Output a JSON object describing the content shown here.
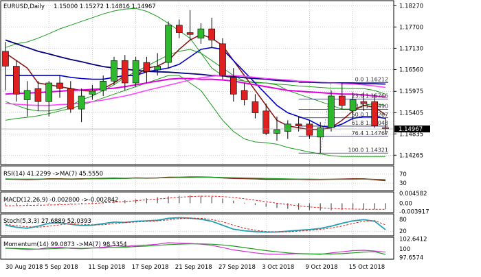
{
  "header": {
    "symbol": "EURUSD,Daily",
    "ohlc": "1.15000 1.15272 1.14816 1.14967"
  },
  "colors": {
    "bull": "#2db82d",
    "bear": "#e02020",
    "bb": "#1a9b1a",
    "ma_fast": "#8b1a1a",
    "ma_mid": "#0000cc",
    "ma_slow": "#1a1a80",
    "ma_mag": "#e000e0",
    "ma_dark": "#000080",
    "ma_pink": "#ff44ff",
    "fib": "#1a1a6e",
    "current_bg": "#000000"
  },
  "chart_data": [
    {
      "type": "candlestick",
      "title": "EURUSD,Daily",
      "ylim": [
        1.1405,
        1.1835
      ],
      "x_ticks": [
        "30 Aug 2018",
        "5 Sep 2018",
        "11 Sep 2018",
        "17 Sep 2018",
        "21 Sep 2018",
        "27 Sep 2018",
        "3 Oct 2018",
        "9 Oct 2018",
        "15 Oct 2018"
      ],
      "y_ticks": [
        "1.18270",
        "1.17700",
        "1.17130",
        "1.16560",
        "1.15975",
        "1.15405",
        "1.14835",
        "1.14265"
      ],
      "current_price": "1.14967",
      "candles": [
        {
          "o": 1.1705,
          "h": 1.173,
          "l": 1.16,
          "c": 1.1665
        },
        {
          "o": 1.1665,
          "h": 1.168,
          "l": 1.157,
          "c": 1.159
        },
        {
          "o": 1.1575,
          "h": 1.1625,
          "l": 1.153,
          "c": 1.16
        },
        {
          "o": 1.1605,
          "h": 1.1625,
          "l": 1.1545,
          "c": 1.157
        },
        {
          "o": 1.157,
          "h": 1.1625,
          "l": 1.153,
          "c": 1.162
        },
        {
          "o": 1.162,
          "h": 1.164,
          "l": 1.158,
          "c": 1.1605
        },
        {
          "o": 1.1605,
          "h": 1.1625,
          "l": 1.154,
          "c": 1.155
        },
        {
          "o": 1.155,
          "h": 1.1605,
          "l": 1.1515,
          "c": 1.1585
        },
        {
          "o": 1.159,
          "h": 1.1615,
          "l": 1.1575,
          "c": 1.1598
        },
        {
          "o": 1.16,
          "h": 1.164,
          "l": 1.1585,
          "c": 1.1625
        },
        {
          "o": 1.1625,
          "h": 1.169,
          "l": 1.1615,
          "c": 1.168
        },
        {
          "o": 1.168,
          "h": 1.1695,
          "l": 1.16,
          "c": 1.162
        },
        {
          "o": 1.162,
          "h": 1.169,
          "l": 1.161,
          "c": 1.168
        },
        {
          "o": 1.1675,
          "h": 1.169,
          "l": 1.162,
          "c": 1.165
        },
        {
          "o": 1.1655,
          "h": 1.17,
          "l": 1.164,
          "c": 1.1665
        },
        {
          "o": 1.1675,
          "h": 1.1785,
          "l": 1.166,
          "c": 1.1775
        },
        {
          "o": 1.1775,
          "h": 1.179,
          "l": 1.174,
          "c": 1.1755
        },
        {
          "o": 1.1755,
          "h": 1.1815,
          "l": 1.1735,
          "c": 1.175
        },
        {
          "o": 1.174,
          "h": 1.178,
          "l": 1.1725,
          "c": 1.1765
        },
        {
          "o": 1.1765,
          "h": 1.1795,
          "l": 1.1715,
          "c": 1.1735
        },
        {
          "o": 1.1725,
          "h": 1.174,
          "l": 1.163,
          "c": 1.164
        },
        {
          "o": 1.1635,
          "h": 1.166,
          "l": 1.157,
          "c": 1.159
        },
        {
          "o": 1.16,
          "h": 1.162,
          "l": 1.156,
          "c": 1.1575
        },
        {
          "o": 1.157,
          "h": 1.159,
          "l": 1.1525,
          "c": 1.154
        },
        {
          "o": 1.1545,
          "h": 1.1565,
          "l": 1.148,
          "c": 1.1485
        },
        {
          "o": 1.1485,
          "h": 1.153,
          "l": 1.1465,
          "c": 1.1495
        },
        {
          "o": 1.149,
          "h": 1.152,
          "l": 1.147,
          "c": 1.151
        },
        {
          "o": 1.151,
          "h": 1.153,
          "l": 1.149,
          "c": 1.1505
        },
        {
          "o": 1.151,
          "h": 1.152,
          "l": 1.147,
          "c": 1.148
        },
        {
          "o": 1.1475,
          "h": 1.1515,
          "l": 1.1432,
          "c": 1.15
        },
        {
          "o": 1.15,
          "h": 1.16,
          "l": 1.149,
          "c": 1.1585
        },
        {
          "o": 1.1585,
          "h": 1.162,
          "l": 1.155,
          "c": 1.156
        },
        {
          "o": 1.1545,
          "h": 1.1595,
          "l": 1.152,
          "c": 1.1575
        },
        {
          "o": 1.157,
          "h": 1.1595,
          "l": 1.1545,
          "c": 1.1565
        },
        {
          "o": 1.157,
          "h": 1.159,
          "l": 1.15,
          "c": 1.1505
        },
        {
          "o": 1.15,
          "h": 1.1527,
          "l": 1.1482,
          "c": 1.1497
        }
      ],
      "bollinger": {
        "upper": [
          1.1715,
          1.1725,
          1.173,
          1.174,
          1.1752,
          1.1765,
          1.1775,
          1.1785,
          1.1795,
          1.1805,
          1.1813,
          1.1818,
          1.182,
          1.1812,
          1.1798,
          1.178,
          1.176,
          1.174,
          1.17,
          1.166,
          1.164,
          1.163,
          1.1625,
          1.1622,
          1.162,
          1.1617,
          1.1615,
          1.1612,
          1.161,
          1.1608,
          1.1606,
          1.1606,
          1.1605,
          1.1605,
          1.16,
          1.159
        ],
        "middle": [
          1.157,
          1.156,
          1.155,
          1.1545,
          1.1545,
          1.155,
          1.156,
          1.1575,
          1.1585,
          1.16,
          1.1615,
          1.1635,
          1.165,
          1.1665,
          1.168,
          1.1695,
          1.1705,
          1.171,
          1.17,
          1.168,
          1.166,
          1.164,
          1.1625,
          1.162,
          1.162,
          1.1615,
          1.16,
          1.159,
          1.158,
          1.157,
          1.156,
          1.155,
          1.155,
          1.156,
          1.1565,
          1.156
        ],
        "lower": [
          1.152,
          1.1525,
          1.1528,
          1.1532,
          1.1538,
          1.1545,
          1.1552,
          1.156,
          1.157,
          1.158,
          1.159,
          1.16,
          1.161,
          1.162,
          1.163,
          1.164,
          1.164,
          1.162,
          1.16,
          1.156,
          1.152,
          1.149,
          1.147,
          1.1462,
          1.146,
          1.1456,
          1.1447,
          1.1441,
          1.1435,
          1.143,
          1.1425,
          1.1423,
          1.1423,
          1.1423,
          1.1423,
          1.1423
        ]
      },
      "lines": [
        {
          "key": "ma_fast",
          "values": [
            1.17,
            1.168,
            1.166,
            1.162,
            1.1615,
            1.161,
            1.1605,
            1.16,
            1.1598,
            1.1605,
            1.162,
            1.164,
            1.164,
            1.166,
            1.1665,
            1.168,
            1.171,
            1.1735,
            1.175,
            1.174,
            1.172,
            1.168,
            1.164,
            1.16,
            1.156,
            1.152,
            1.1505,
            1.15,
            1.1495,
            1.1495,
            1.15,
            1.152,
            1.1545,
            1.156,
            1.1555,
            1.1535
          ]
        },
        {
          "key": "ma_mid",
          "values": [
            1.164,
            1.164,
            1.164,
            1.164,
            1.164,
            1.164,
            1.1635,
            1.1632,
            1.163,
            1.163,
            1.1635,
            1.164,
            1.164,
            1.165,
            1.1655,
            1.166,
            1.167,
            1.169,
            1.171,
            1.1715,
            1.171,
            1.168,
            1.165,
            1.162,
            1.159,
            1.156,
            1.154,
            1.153,
            1.152,
            1.1505,
            1.15,
            1.151,
            1.1525,
            1.153,
            1.153,
            1.1525
          ]
        },
        {
          "key": "ma_dark",
          "values": [
            1.1735,
            1.1725,
            1.1715,
            1.1705,
            1.1698,
            1.169,
            1.1683,
            1.1677,
            1.167,
            1.1664,
            1.166,
            1.1657,
            1.1654,
            1.1651,
            1.165,
            1.1649,
            1.1647,
            1.1645,
            1.1643,
            1.164,
            1.1639,
            1.1637,
            1.1634,
            1.1632,
            1.163,
            1.1627,
            1.1625,
            1.1624,
            1.1622,
            1.1621,
            1.162,
            1.162,
            1.1619,
            1.1618,
            1.1618,
            1.1617
          ]
        },
        {
          "key": "ma_mag",
          "values": [
            1.159,
            1.1592,
            1.1593,
            1.1594,
            1.1596,
            1.1598,
            1.16,
            1.1601,
            1.1603,
            1.1604,
            1.1606,
            1.161,
            1.1615,
            1.162,
            1.1625,
            1.163,
            1.1632,
            1.1632,
            1.163,
            1.163,
            1.1628,
            1.1625,
            1.162,
            1.1615,
            1.161,
            1.1605,
            1.16,
            1.1598,
            1.1596,
            1.1594,
            1.1592,
            1.159,
            1.159,
            1.1588,
            1.1585,
            1.1582
          ]
        },
        {
          "key": "ma_pink",
          "values": [
            1.1565,
            1.1563,
            1.1561,
            1.156,
            1.156,
            1.1562,
            1.1563,
            1.1566,
            1.157,
            1.1574,
            1.158,
            1.1585,
            1.1592,
            1.16,
            1.1607,
            1.1614,
            1.1621,
            1.1628,
            1.1634,
            1.1638,
            1.164,
            1.164,
            1.1638,
            1.1635,
            1.1632,
            1.163,
            1.1628,
            1.1625,
            1.1624,
            1.1622,
            1.162,
            1.1618,
            1.1617,
            1.1615,
            1.1612,
            1.1608
          ]
        }
      ],
      "fib_levels": [
        {
          "label": "0.0 1.16212",
          "value": 1.16212
        },
        {
          "label": "23.6 1.15766",
          "value": 1.15766
        },
        {
          "label": "38.2 1.15490",
          "value": 1.1549
        },
        {
          "label": "50.0 1.15267",
          "value": 1.15267
        },
        {
          "label": "61.8 1.15043",
          "value": 1.15043
        },
        {
          "label": "76.4 1.14767",
          "value": 1.14767
        },
        {
          "label": "100.0 1.14321",
          "value": 1.14321
        }
      ]
    },
    {
      "type": "line",
      "title": "RSI(14) 41.2299 ->MA(7) 45.5550",
      "ylim": [
        0,
        100
      ],
      "y_ticks": [
        "70",
        "30"
      ],
      "series": [
        {
          "key": "rsi",
          "values": [
            48,
            47,
            46,
            47,
            49,
            49,
            48,
            49,
            50,
            51,
            52,
            51,
            53,
            52,
            53,
            56,
            56,
            57,
            57,
            56,
            53,
            51,
            50,
            49,
            47,
            47,
            47,
            47,
            46,
            46,
            47,
            48,
            49,
            49,
            45,
            41
          ]
        },
        {
          "key": "rsi_ma",
          "values": [
            49,
            48,
            48,
            48,
            48,
            48,
            48,
            48,
            49,
            49,
            50,
            51,
            52,
            52,
            53,
            54,
            55,
            55,
            56,
            56,
            55,
            54,
            53,
            52,
            51,
            50,
            49,
            48,
            48,
            47,
            47,
            47,
            47,
            48,
            47,
            46
          ]
        }
      ]
    },
    {
      "type": "bar",
      "title": "MACD(12,26,9) -0.002800 ->-0.002842",
      "y_ticks": [
        "0.004582",
        "0.00",
        "-0.003917"
      ],
      "ylim": [
        -0.004,
        0.0046
      ],
      "values": [
        -0.001,
        -0.0008,
        -0.0006,
        -0.0005,
        -0.0004,
        -0.0002,
        -0.0001,
        0.0001,
        0.0003,
        0.0006,
        0.0009,
        0.0014,
        0.0018,
        0.0023,
        0.0028,
        0.0032,
        0.0035,
        0.0037,
        0.0035,
        0.003,
        0.0022,
        0.0012,
        0.0002,
        -0.0008,
        -0.0016,
        -0.0022,
        -0.0026,
        -0.003,
        -0.0032,
        -0.0034,
        -0.0033,
        -0.0031,
        -0.0029,
        -0.0028,
        -0.0028,
        -0.0028
      ],
      "signal": [
        -0.0012,
        -0.0011,
        -0.001,
        -0.0009,
        -0.0008,
        -0.0007,
        -0.0005,
        -0.0003,
        -0.0001,
        0.0002,
        0.0005,
        0.0008,
        0.0012,
        0.0016,
        0.002,
        0.0024,
        0.0028,
        0.0031,
        0.0033,
        0.0033,
        0.0031,
        0.0027,
        0.0021,
        0.0014,
        0.0007,
        0.0,
        -0.0006,
        -0.0012,
        -0.0017,
        -0.0021,
        -0.0024,
        -0.0026,
        -0.0027,
        -0.0028,
        -0.0028,
        -0.0028
      ]
    },
    {
      "type": "line",
      "title": "Stoch(5,3,3) 27.6889 52.0393",
      "ylim": [
        0,
        100
      ],
      "y_ticks": [
        "80",
        "20"
      ],
      "series": [
        {
          "key": "k",
          "values": [
            50,
            40,
            35,
            45,
            60,
            62,
            55,
            48,
            50,
            58,
            66,
            64,
            70,
            72,
            75,
            85,
            88,
            86,
            80,
            70,
            50,
            30,
            22,
            18,
            15,
            16,
            20,
            25,
            28,
            34,
            45,
            60,
            72,
            78,
            70,
            28
          ]
        },
        {
          "key": "d",
          "values": [
            55,
            48,
            42,
            40,
            45,
            52,
            58,
            55,
            52,
            52,
            58,
            63,
            66,
            69,
            72,
            77,
            83,
            86,
            85,
            79,
            67,
            50,
            35,
            25,
            18,
            17,
            17,
            20,
            24,
            29,
            36,
            46,
            59,
            70,
            73,
            52
          ]
        }
      ]
    },
    {
      "type": "line",
      "title": "Momentum(14) 99.0873 ->MA(7) 98.5354",
      "ylim": [
        97.4,
        102.7
      ],
      "y_ticks": [
        "102.6412",
        "100",
        "97.6574"
      ],
      "series": [
        {
          "key": "mom",
          "values": [
            100.2,
            100.0,
            99.8,
            99.9,
            100.3,
            100.4,
            100.1,
            100.0,
            100.2,
            100.4,
            100.8,
            100.6,
            100.9,
            101.0,
            101.2,
            101.6,
            101.5,
            101.4,
            101.2,
            100.9,
            100.3,
            99.7,
            99.3,
            98.9,
            98.6,
            98.5,
            98.6,
            98.7,
            98.6,
            98.5,
            98.9,
            99.2,
            99.5,
            99.6,
            99.4,
            99.1
          ]
        },
        {
          "key": "mom_ma",
          "values": [
            100.1,
            100.1,
            100.0,
            99.9,
            100.0,
            100.1,
            100.2,
            100.1,
            100.2,
            100.2,
            100.3,
            100.4,
            100.6,
            100.7,
            100.9,
            101.1,
            101.2,
            101.3,
            101.3,
            101.2,
            101.0,
            100.7,
            100.3,
            99.9,
            99.5,
            99.2,
            98.9,
            98.7,
            98.6,
            98.6,
            98.6,
            98.7,
            98.9,
            99.1,
            99.2,
            98.5
          ]
        }
      ]
    }
  ]
}
